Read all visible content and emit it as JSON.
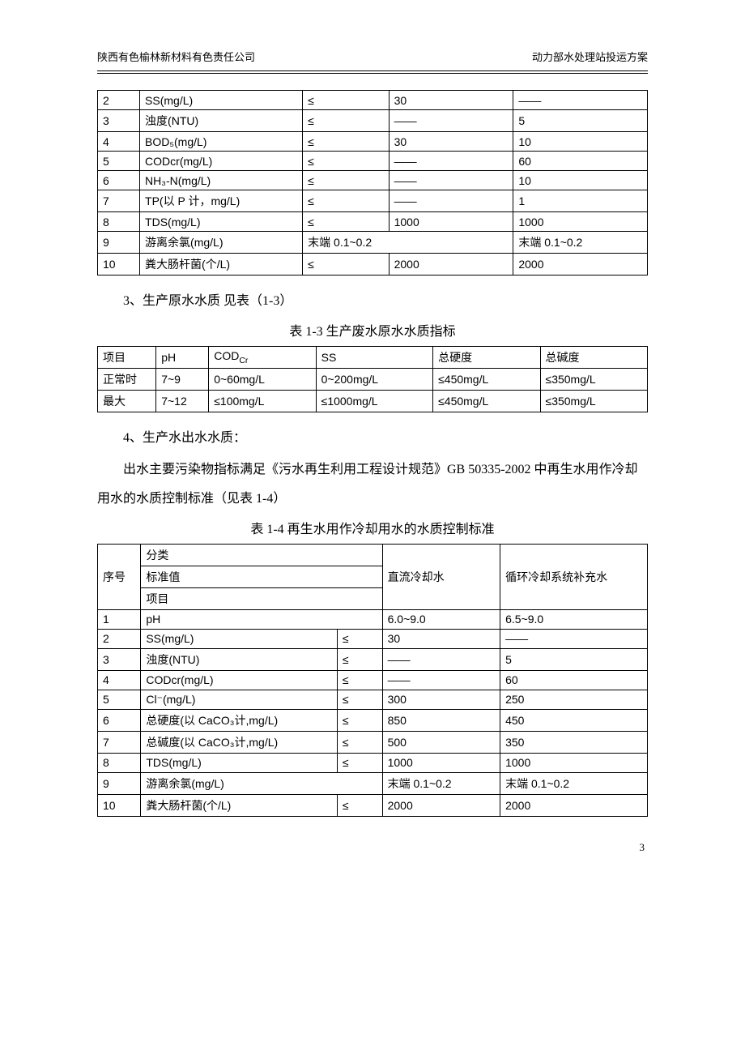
{
  "header": {
    "left": "陕西有色榆林新材料有色责任公司",
    "right": "动力部水处理站投运方案"
  },
  "table1": {
    "rows": [
      [
        "2",
        "SS(mg/L)",
        "≤",
        "30",
        "——"
      ],
      [
        "3",
        "浊度(NTU)",
        "≤",
        "——",
        "5"
      ],
      [
        "4",
        "BOD₅(mg/L)",
        "≤",
        "30",
        "10"
      ],
      [
        "5",
        "CODcr(mg/L)",
        "≤",
        "——",
        "60"
      ],
      [
        "6",
        "NH₃-N(mg/L)",
        "≤",
        "——",
        "10"
      ],
      [
        "7",
        "TP(以 P 计，mg/L)",
        "≤",
        "——",
        "1"
      ],
      [
        "8",
        "TDS(mg/L)",
        "≤",
        "1000",
        "1000"
      ],
      [
        "9",
        "游离余氯(mg/L)",
        "末端 0.1~0.2",
        "",
        "末端 0.1~0.2"
      ],
      [
        "10",
        "粪大肠杆菌(个/L)",
        "≤",
        "2000",
        "2000"
      ]
    ],
    "col_widths": [
      "44px",
      "170px",
      "90px",
      "130px",
      "140px"
    ]
  },
  "section3": {
    "label": "3、生产原水水质  见表（1-3）",
    "caption": "表 1-3 生产废水原水水质指标"
  },
  "table2": {
    "header": [
      "项目",
      "pH",
      "CODCr",
      "SS",
      "总硬度",
      "总碱度"
    ],
    "rows": [
      [
        "正常时",
        "7~9",
        "0~60mg/L",
        "0~200mg/L",
        "≤450mg/L",
        "≤350mg/L"
      ],
      [
        "最大",
        "7~12",
        "≤100mg/L",
        "≤1000mg/L",
        "≤450mg/L",
        "≤350mg/L"
      ]
    ],
    "col_widths": [
      "60px",
      "54px",
      "110px",
      "120px",
      "110px",
      "110px"
    ]
  },
  "section4": {
    "label": "4、生产水出水水质：",
    "para": "出水主要污染物指标满足《污水再生利用工程设计规范》GB 50335-2002 中再生水用作冷却用水的水质控制标准（见表 1-4）",
    "caption": "表 1-4 再生水用作冷却用水的水质控制标准"
  },
  "table3": {
    "header_rows": {
      "seq": "序号",
      "cat": "分类",
      "std": "标准值",
      "item": "项目",
      "col3": "直流冷却水",
      "col4": "循环冷却系统补充水"
    },
    "rows": [
      [
        "1",
        "pH",
        "",
        "6.0~9.0",
        "6.5~9.0"
      ],
      [
        "2",
        "SS(mg/L)",
        "≤",
        "30",
        "——"
      ],
      [
        "3",
        "浊度(NTU)",
        "≤",
        "——",
        "5"
      ],
      [
        "4",
        "CODcr(mg/L)",
        "≤",
        "——",
        "60"
      ],
      [
        "5",
        "Cl⁻(mg/L)",
        "≤",
        "300",
        "250"
      ],
      [
        "6",
        "总硬度(以 CaCO₃计,mg/L)",
        "≤",
        "850",
        "450"
      ],
      [
        "7",
        "总碱度(以 CaCO₃计,mg/L)",
        "≤",
        "500",
        "350"
      ],
      [
        "8",
        "TDS(mg/L)",
        "≤",
        "1000",
        "1000"
      ],
      [
        "9",
        "游离余氯(mg/L)",
        "",
        "末端 0.1~0.2",
        "末端 0.1~0.2"
      ],
      [
        "10",
        "粪大肠杆菌(个/L)",
        "≤",
        "2000",
        "2000"
      ]
    ],
    "col_widths": [
      "44px",
      "200px",
      "46px",
      "120px",
      "150px"
    ]
  },
  "page_number": "3",
  "colors": {
    "text": "#000000",
    "bg": "#ffffff",
    "border": "#000000"
  }
}
